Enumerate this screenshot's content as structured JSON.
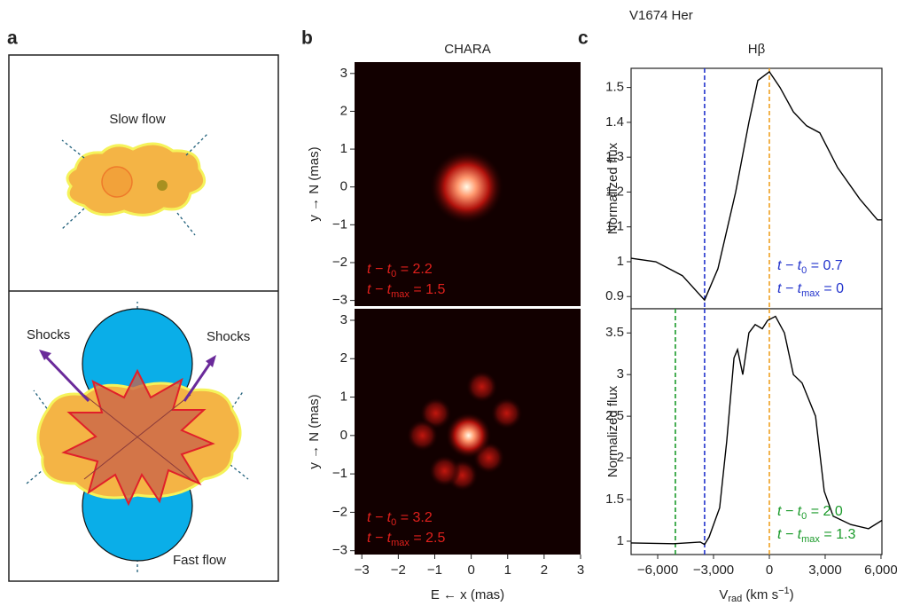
{
  "figure_title": "V1674 Her",
  "panel_a": {
    "label": "a",
    "top_label": "Slow flow",
    "shocks_left": "Shocks",
    "shocks_right": "Shocks",
    "bottom_label": "Fast flow"
  },
  "chart_data": [
    {
      "type": "image",
      "panel_label": "b",
      "title": "CHARA",
      "ylabel": "y → N (mas)",
      "xlim": [
        -3.2,
        3.0
      ],
      "ylim": [
        -3.15,
        3.3
      ],
      "yticks": [
        {
          "value": -3,
          "label": "−3"
        },
        {
          "value": -2,
          "label": "−2"
        },
        {
          "value": -1,
          "label": "−1"
        },
        0,
        1,
        2,
        3
      ],
      "annotations": [
        {
          "text": "t − t",
          "sub": "0",
          "rest": " = 2.2",
          "color": "#e0201c"
        },
        {
          "text": "t − t",
          "sub": "max",
          "rest": " = 1.5",
          "color": "#e0201c"
        }
      ]
    },
    {
      "type": "image",
      "ylabel": "y → N (mas)",
      "xlabel": "E ← x (mas)",
      "xlim": [
        -3.2,
        3.0
      ],
      "ylim": [
        -3.1,
        3.3
      ],
      "xticks": [
        {
          "value": -3,
          "label": "−3"
        },
        {
          "value": -2,
          "label": "−2"
        },
        {
          "value": -1,
          "label": "−1"
        },
        0,
        1,
        2,
        3
      ],
      "yticks": [
        {
          "value": -3,
          "label": "−3"
        },
        {
          "value": -2,
          "label": "−2"
        },
        {
          "value": -1,
          "label": "−1"
        },
        0,
        1,
        2,
        3
      ],
      "annotations": [
        {
          "text": "t − t",
          "sub": "0",
          "rest": " = 3.2",
          "color": "#e0201c"
        },
        {
          "text": "t − t",
          "sub": "max",
          "rest": " = 2.5",
          "color": "#e0201c"
        }
      ]
    },
    {
      "type": "line",
      "panel_label": "c",
      "title": "Hβ",
      "ylabel": "Normalized flux",
      "color": "#000000",
      "x": [
        -7430,
        -6100,
        -4670,
        -3480,
        -2760,
        -1810,
        -1100,
        -620,
        0,
        570,
        1290,
        2000,
        2710,
        3670,
        4860,
        5810,
        6050
      ],
      "values": [
        1.01,
        1.0,
        0.96,
        0.89,
        0.98,
        1.2,
        1.4,
        1.52,
        1.545,
        1.5,
        1.43,
        1.39,
        1.37,
        1.27,
        1.18,
        1.12,
        1.12
      ],
      "xlim": [
        -7430,
        6050
      ],
      "ylim": [
        0.865,
        1.555
      ],
      "xticks": [
        {
          "value": -3000,
          "label": "−3,000"
        },
        0,
        {
          "value": 3000,
          "label": "3,000"
        }
      ],
      "yticks": [
        0.9,
        1.0,
        1.1,
        1.2,
        1.3,
        1.4,
        1.5
      ],
      "vlines": [
        {
          "x": -3480,
          "color": "#2233cc"
        },
        {
          "x": 0,
          "color": "#f0a020"
        }
      ],
      "annotations": [
        {
          "text": "t − t",
          "sub": "0",
          "rest": " = 0.7",
          "color": "#2233cc"
        },
        {
          "text": "t − t",
          "sub": "max",
          "rest": " = 0",
          "color": "#2233cc"
        }
      ]
    },
    {
      "type": "line",
      "ylabel": "Normalized flux",
      "color": "#000000",
      "xlabel": {
        "main": "V",
        "sub": "rad",
        "rest": " (km s",
        "sup": "−1",
        "end": ")"
      },
      "x": [
        -7430,
        -5140,
        -3710,
        -3480,
        -3240,
        -2670,
        -2290,
        -1900,
        -1710,
        -1430,
        -1100,
        -760,
        -380,
        -95,
        330,
        810,
        1290,
        1760,
        2480,
        2950,
        3430,
        4380,
        5330,
        6050
      ],
      "values": [
        0.98,
        0.97,
        0.99,
        0.96,
        1.05,
        1.4,
        2.2,
        3.2,
        3.3,
        3.0,
        3.5,
        3.6,
        3.55,
        3.65,
        3.7,
        3.5,
        3.0,
        2.9,
        2.5,
        1.6,
        1.3,
        1.2,
        1.15,
        1.25
      ],
      "xlim": [
        -7430,
        6050
      ],
      "ylim": [
        0.84,
        3.79
      ],
      "xticks": [
        {
          "value": -6000,
          "label": "−6,000"
        },
        {
          "value": -3000,
          "label": "−3,000"
        },
        0,
        {
          "value": 3000,
          "label": "3,000"
        },
        {
          "value": 6000,
          "label": "6,000"
        }
      ],
      "yticks": [
        1.0,
        1.5,
        2.0,
        2.5,
        3.0,
        3.5
      ],
      "vlines": [
        {
          "x": -5050,
          "color": "#1a9a2a"
        },
        {
          "x": -3480,
          "color": "#2233cc"
        },
        {
          "x": 0,
          "color": "#f0a020"
        }
      ],
      "annotations": [
        {
          "text": "t − t",
          "sub": "0",
          "rest": " = 2.0",
          "color": "#1a9a2a"
        },
        {
          "text": "t − t",
          "sub": "max",
          "rest": " = 1.3",
          "color": "#1a9a2a"
        }
      ]
    }
  ]
}
